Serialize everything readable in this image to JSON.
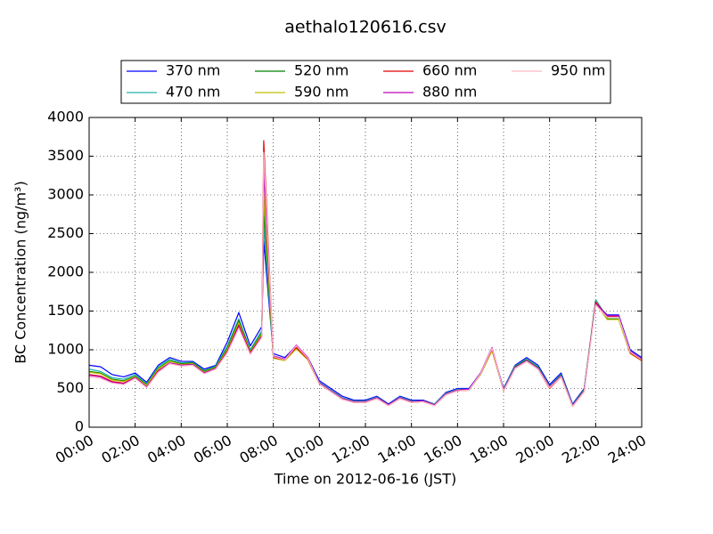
{
  "chart_data": {
    "type": "line",
    "title": "aethalo120616.csv",
    "xlabel": "Time on 2012-06-16 (JST)",
    "ylabel": "BC Concentration (ng/m³)",
    "x": [
      "00:00",
      "00:30",
      "01:00",
      "01:30",
      "02:00",
      "02:30",
      "03:00",
      "03:30",
      "04:00",
      "04:30",
      "05:00",
      "05:30",
      "06:00",
      "06:30",
      "07:00",
      "07:30",
      "07:35",
      "08:00",
      "08:30",
      "09:00",
      "09:30",
      "10:00",
      "10:30",
      "11:00",
      "11:30",
      "12:00",
      "12:30",
      "13:00",
      "13:30",
      "14:00",
      "14:30",
      "15:00",
      "15:30",
      "16:00",
      "16:30",
      "17:00",
      "17:30",
      "18:00",
      "18:30",
      "19:00",
      "19:30",
      "20:00",
      "20:30",
      "21:00",
      "21:30",
      "22:00",
      "22:30",
      "23:00",
      "23:30",
      "24:00"
    ],
    "xlim": [
      "00:00",
      "24:00"
    ],
    "xticks": [
      "00:00",
      "02:00",
      "04:00",
      "06:00",
      "08:00",
      "10:00",
      "12:00",
      "14:00",
      "16:00",
      "18:00",
      "20:00",
      "22:00",
      "24:00"
    ],
    "ylim": [
      0,
      4000
    ],
    "yticks": [
      0,
      500,
      1000,
      1500,
      2000,
      2500,
      3000,
      3500,
      4000
    ],
    "grid": true,
    "legend": "top",
    "series": [
      {
        "name": "370 nm",
        "color": "#0000ff",
        "values": [
          800,
          780,
          680,
          650,
          700,
          580,
          800,
          900,
          850,
          850,
          750,
          800,
          1100,
          1480,
          1050,
          1300,
          2400,
          950,
          900,
          1050,
          900,
          600,
          500,
          400,
          350,
          350,
          400,
          300,
          400,
          350,
          350,
          300,
          450,
          500,
          500,
          700,
          1000,
          500,
          800,
          900,
          800,
          550,
          700,
          300,
          500,
          1600,
          1450,
          1450,
          1000,
          900
        ]
      },
      {
        "name": "470 nm",
        "color": "#20b2aa",
        "values": [
          750,
          720,
          640,
          620,
          680,
          560,
          780,
          880,
          830,
          840,
          730,
          790,
          1050,
          1400,
          1000,
          1250,
          2600,
          920,
          880,
          1030,
          890,
          580,
          480,
          380,
          340,
          340,
          390,
          290,
          390,
          340,
          340,
          300,
          440,
          490,
          490,
          690,
          1000,
          490,
          790,
          880,
          780,
          530,
          680,
          290,
          490,
          1650,
          1420,
          1420,
          980,
          880
        ]
      },
      {
        "name": "520 nm",
        "color": "#008000",
        "values": [
          720,
          700,
          620,
          600,
          660,
          550,
          760,
          860,
          820,
          830,
          720,
          780,
          1020,
          1380,
          980,
          1220,
          2800,
          900,
          870,
          1020,
          880,
          570,
          470,
          370,
          330,
          330,
          380,
          290,
          380,
          330,
          340,
          290,
          430,
          480,
          490,
          680,
          990,
          480,
          780,
          870,
          770,
          520,
          670,
          280,
          480,
          1620,
          1400,
          1400,
          960,
          870
        ]
      },
      {
        "name": "590 nm",
        "color": "#bfbf00",
        "values": [
          710,
          690,
          610,
          590,
          650,
          540,
          750,
          850,
          810,
          820,
          710,
          770,
          1000,
          1350,
          970,
          1200,
          3000,
          890,
          860,
          1010,
          870,
          560,
          460,
          360,
          330,
          320,
          370,
          280,
          370,
          320,
          330,
          290,
          430,
          470,
          480,
          680,
          990,
          470,
          770,
          860,
          760,
          510,
          660,
          270,
          470,
          1600,
          1390,
          1390,
          950,
          860
        ]
      },
      {
        "name": "660 nm",
        "color": "#e00000",
        "values": [
          680,
          660,
          590,
          570,
          640,
          520,
          730,
          830,
          800,
          810,
          700,
          760,
          980,
          1320,
          960,
          1180,
          3700,
          900,
          870,
          1030,
          880,
          560,
          460,
          360,
          320,
          320,
          370,
          280,
          370,
          320,
          330,
          280,
          420,
          470,
          480,
          690,
          1010,
          470,
          760,
          850,
          750,
          500,
          650,
          270,
          460,
          1620,
          1430,
          1430,
          960,
          860
        ]
      },
      {
        "name": "880 nm",
        "color": "#bf00bf",
        "values": [
          670,
          650,
          580,
          560,
          640,
          520,
          720,
          830,
          800,
          810,
          700,
          760,
          970,
          1300,
          950,
          1170,
          3300,
          920,
          880,
          1060,
          900,
          570,
          470,
          370,
          330,
          330,
          380,
          290,
          380,
          330,
          340,
          290,
          430,
          480,
          490,
          700,
          1030,
          480,
          770,
          860,
          760,
          520,
          660,
          280,
          470,
          1600,
          1440,
          1440,
          980,
          880
        ]
      },
      {
        "name": "950 nm",
        "color": "#ffb6c8",
        "values": [
          650,
          630,
          570,
          550,
          630,
          510,
          710,
          820,
          790,
          800,
          690,
          750,
          960,
          1280,
          940,
          1160,
          3550,
          910,
          870,
          1050,
          890,
          560,
          460,
          360,
          320,
          320,
          370,
          280,
          370,
          320,
          330,
          280,
          420,
          470,
          480,
          690,
          1020,
          470,
          760,
          850,
          750,
          510,
          650,
          270,
          460,
          1580,
          1420,
          1420,
          970,
          870
        ]
      }
    ]
  }
}
